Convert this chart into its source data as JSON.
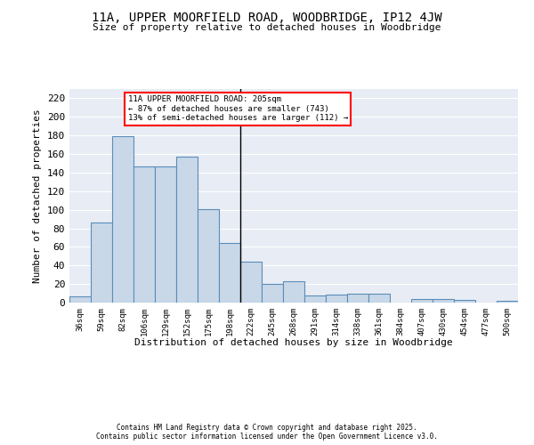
{
  "title1": "11A, UPPER MOORFIELD ROAD, WOODBRIDGE, IP12 4JW",
  "title2": "Size of property relative to detached houses in Woodbridge",
  "xlabel": "Distribution of detached houses by size in Woodbridge",
  "ylabel": "Number of detached properties",
  "categories": [
    "36sqm",
    "59sqm",
    "82sqm",
    "106sqm",
    "129sqm",
    "152sqm",
    "175sqm",
    "198sqm",
    "222sqm",
    "245sqm",
    "268sqm",
    "291sqm",
    "314sqm",
    "338sqm",
    "361sqm",
    "384sqm",
    "407sqm",
    "430sqm",
    "454sqm",
    "477sqm",
    "500sqm"
  ],
  "values": [
    7,
    86,
    179,
    147,
    147,
    157,
    101,
    64,
    44,
    20,
    23,
    8,
    9,
    10,
    10,
    0,
    4,
    4,
    3,
    0,
    2
  ],
  "bar_color": "#c8d8e8",
  "bar_edge_color": "#5b8db8",
  "annotation_text": "11A UPPER MOORFIELD ROAD: 205sqm\n← 87% of detached houses are smaller (743)\n13% of semi-detached houses are larger (112) →",
  "annotation_box_color": "white",
  "annotation_box_edge": "red",
  "ylim": [
    0,
    230
  ],
  "yticks": [
    0,
    20,
    40,
    60,
    80,
    100,
    120,
    140,
    160,
    180,
    200,
    220
  ],
  "background_color": "#e8ecf4",
  "grid_color": "white",
  "footer1": "Contains HM Land Registry data © Crown copyright and database right 2025.",
  "footer2": "Contains public sector information licensed under the Open Government Licence v3.0."
}
